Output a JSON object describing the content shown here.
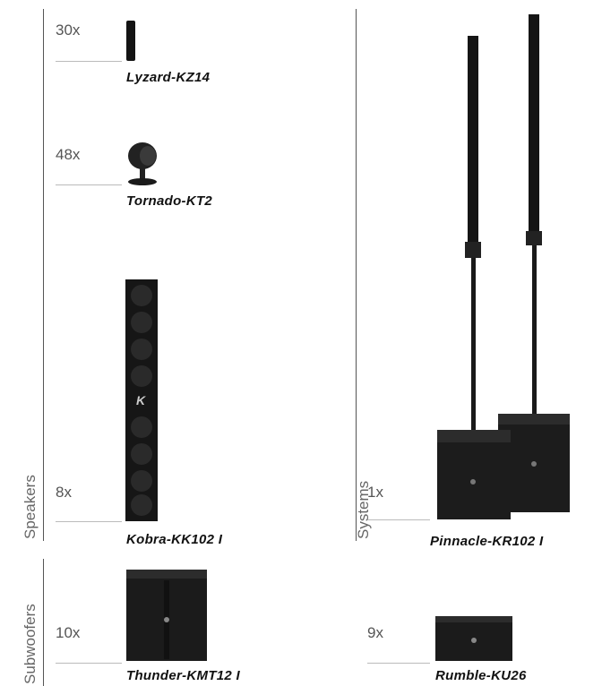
{
  "sections": {
    "speakers": "Speakers",
    "systems": "Systems",
    "subwoofers": "Subwoofers"
  },
  "items": [
    {
      "qty": "30x",
      "name": "Lyzard-KZ14"
    },
    {
      "qty": "48x",
      "name": "Tornado-KT2"
    },
    {
      "qty": "8x",
      "name": "Kobra-KK102 I"
    },
    {
      "qty": "1x",
      "name": "Pinnacle-KR102 I"
    },
    {
      "qty": "10x",
      "name": "Thunder-KMT12 I"
    },
    {
      "qty": "9x",
      "name": "Rumble-KU26"
    }
  ],
  "colors": {
    "product": "#141414",
    "rule": "#555555",
    "text": "#111111"
  }
}
